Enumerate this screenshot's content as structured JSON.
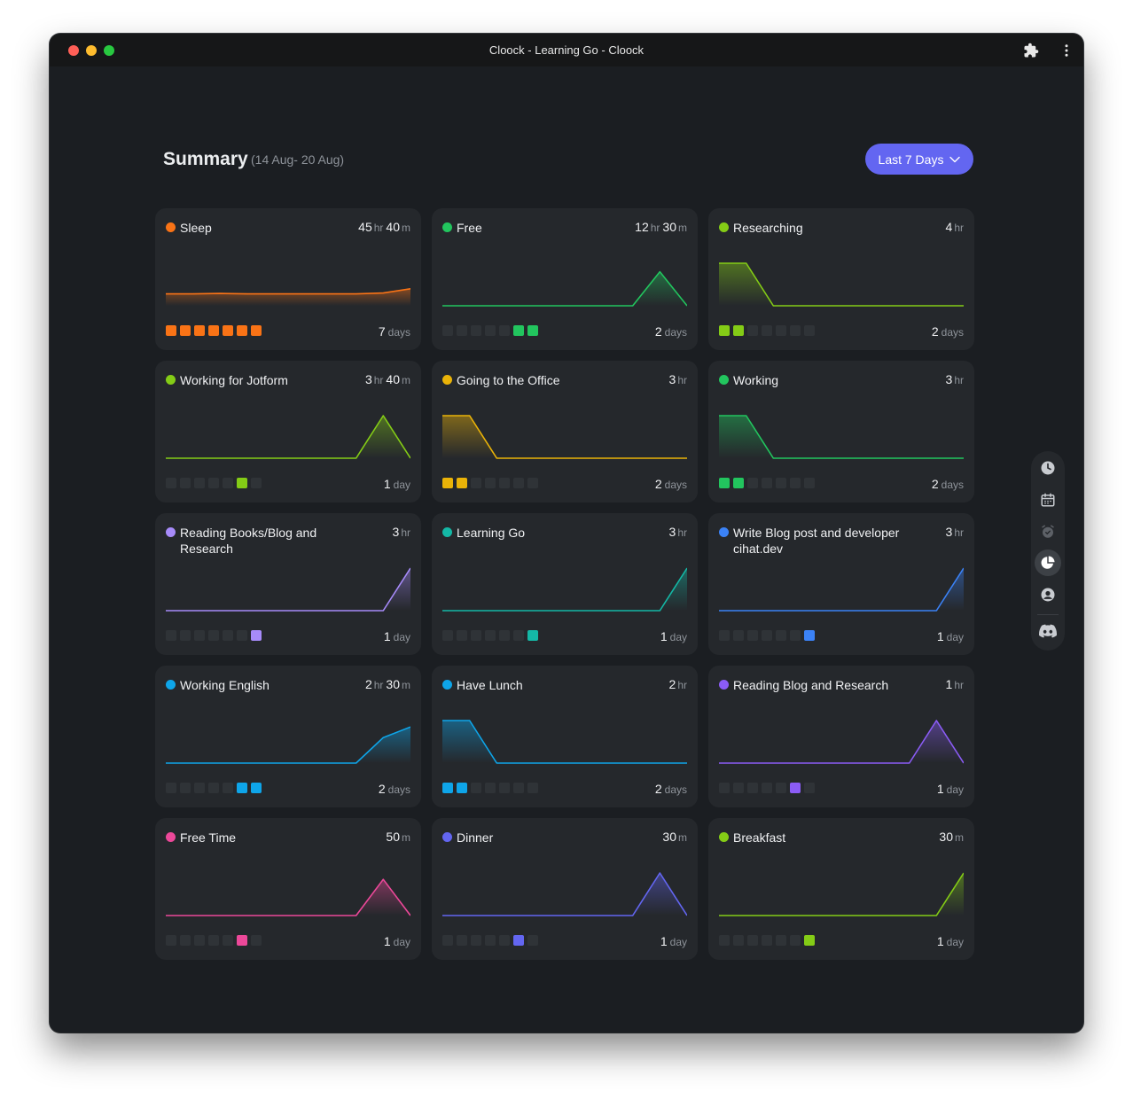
{
  "window": {
    "title": "Cloock - Learning Go - Cloock"
  },
  "header": {
    "title": "Summary",
    "range": "(14 Aug- 20 Aug)",
    "button_label": "Last 7 Days"
  },
  "cards": [
    {
      "name": "Sleep",
      "color": "#f97316",
      "hr": "45",
      "min": "40",
      "days_count": "7",
      "days_unit": "days",
      "series": [
        0.28,
        0.28,
        0.29,
        0.28,
        0.28,
        0.28,
        0.28,
        0.28,
        0.3,
        0.4
      ],
      "days_active": [
        1,
        1,
        1,
        1,
        1,
        1,
        1
      ]
    },
    {
      "name": "Free",
      "color": "#22c55e",
      "hr": "12",
      "min": "30",
      "days_count": "2",
      "days_unit": "days",
      "series": [
        0,
        0,
        0,
        0,
        0,
        0,
        0,
        0,
        0.8,
        0
      ],
      "days_active": [
        0,
        0,
        0,
        0,
        0,
        1,
        1
      ]
    },
    {
      "name": "Researching",
      "color": "#84cc16",
      "hr": "4",
      "min": "",
      "days_count": "2",
      "days_unit": "days",
      "series": [
        1,
        1,
        0,
        0,
        0,
        0,
        0,
        0,
        0,
        0
      ],
      "days_active": [
        1,
        1,
        0,
        0,
        0,
        0,
        0
      ]
    },
    {
      "name": "Working for Jotform",
      "color": "#84cc16",
      "hr": "3",
      "min": "40",
      "days_count": "1",
      "days_unit": "day",
      "series": [
        0,
        0,
        0,
        0,
        0,
        0,
        0,
        0,
        1,
        0
      ],
      "days_active": [
        0,
        0,
        0,
        0,
        0,
        1,
        0
      ]
    },
    {
      "name": "Going to the Office",
      "color": "#eab308",
      "hr": "3",
      "min": "",
      "days_count": "2",
      "days_unit": "days",
      "series": [
        1,
        1,
        0,
        0,
        0,
        0,
        0,
        0,
        0,
        0
      ],
      "days_active": [
        1,
        1,
        0,
        0,
        0,
        0,
        0
      ]
    },
    {
      "name": "Working",
      "color": "#22c55e",
      "hr": "3",
      "min": "",
      "days_count": "2",
      "days_unit": "days",
      "series": [
        1,
        1,
        0,
        0,
        0,
        0,
        0,
        0,
        0,
        0
      ],
      "days_active": [
        1,
        1,
        0,
        0,
        0,
        0,
        0
      ]
    },
    {
      "name": "Reading Books/Blog and Research",
      "color": "#a78bfa",
      "hr": "3",
      "min": "",
      "days_count": "1",
      "days_unit": "day",
      "series": [
        0,
        0,
        0,
        0,
        0,
        0,
        0,
        0,
        0,
        1
      ],
      "days_active": [
        0,
        0,
        0,
        0,
        0,
        0,
        1
      ]
    },
    {
      "name": "Learning Go",
      "color": "#14b8a6",
      "hr": "3",
      "min": "",
      "days_count": "1",
      "days_unit": "day",
      "series": [
        0,
        0,
        0,
        0,
        0,
        0,
        0,
        0,
        0,
        1
      ],
      "days_active": [
        0,
        0,
        0,
        0,
        0,
        0,
        1
      ]
    },
    {
      "name": "Write Blog post and developer cihat.dev",
      "color": "#3b82f6",
      "hr": "3",
      "min": "",
      "days_count": "1",
      "days_unit": "day",
      "series": [
        0,
        0,
        0,
        0,
        0,
        0,
        0,
        0,
        0,
        1
      ],
      "days_active": [
        0,
        0,
        0,
        0,
        0,
        0,
        1
      ]
    },
    {
      "name": "Working English",
      "color": "#0ea5e9",
      "hr": "2",
      "min": "30",
      "days_count": "2",
      "days_unit": "days",
      "series": [
        0,
        0,
        0,
        0,
        0,
        0,
        0,
        0,
        0.6,
        0.85
      ],
      "days_active": [
        0,
        0,
        0,
        0,
        0,
        1,
        1
      ]
    },
    {
      "name": "Have Lunch",
      "color": "#0ea5e9",
      "hr": "2",
      "min": "",
      "days_count": "2",
      "days_unit": "days",
      "series": [
        1,
        1,
        0,
        0,
        0,
        0,
        0,
        0,
        0,
        0
      ],
      "days_active": [
        1,
        1,
        0,
        0,
        0,
        0,
        0
      ]
    },
    {
      "name": "Reading Blog and Research",
      "color": "#8b5cf6",
      "hr": "1",
      "min": "",
      "days_count": "1",
      "days_unit": "day",
      "series": [
        0,
        0,
        0,
        0,
        0,
        0,
        0,
        0,
        1,
        0
      ],
      "days_active": [
        0,
        0,
        0,
        0,
        0,
        1,
        0
      ]
    },
    {
      "name": "Free Time",
      "color": "#ec4899",
      "hr": "",
      "min": "50",
      "days_count": "1",
      "days_unit": "day",
      "series": [
        0,
        0,
        0,
        0,
        0,
        0,
        0,
        0,
        0.85,
        0
      ],
      "days_active": [
        0,
        0,
        0,
        0,
        0,
        1,
        0
      ]
    },
    {
      "name": "Dinner",
      "color": "#6366f1",
      "hr": "",
      "min": "30",
      "days_count": "1",
      "days_unit": "day",
      "series": [
        0,
        0,
        0,
        0,
        0,
        0,
        0,
        0,
        1,
        0
      ],
      "days_active": [
        0,
        0,
        0,
        0,
        0,
        1,
        0
      ]
    },
    {
      "name": "Breakfast",
      "color": "#84cc16",
      "hr": "",
      "min": "30",
      "days_count": "1",
      "days_unit": "day",
      "series": [
        0,
        0,
        0,
        0,
        0,
        0,
        0,
        0,
        0,
        1
      ],
      "days_active": [
        0,
        0,
        0,
        0,
        0,
        0,
        1
      ]
    }
  ],
  "units": {
    "hr": "hr",
    "min": "m"
  },
  "sidebar": {
    "items": [
      "clock-icon",
      "calendar-icon",
      "alarm-icon",
      "pie-chart-icon",
      "profile-icon",
      "discord-icon"
    ],
    "active": "pie-chart-icon"
  },
  "colors": {
    "accent": "#6366f1",
    "background": "#1b1e22",
    "card": "#25282c"
  }
}
